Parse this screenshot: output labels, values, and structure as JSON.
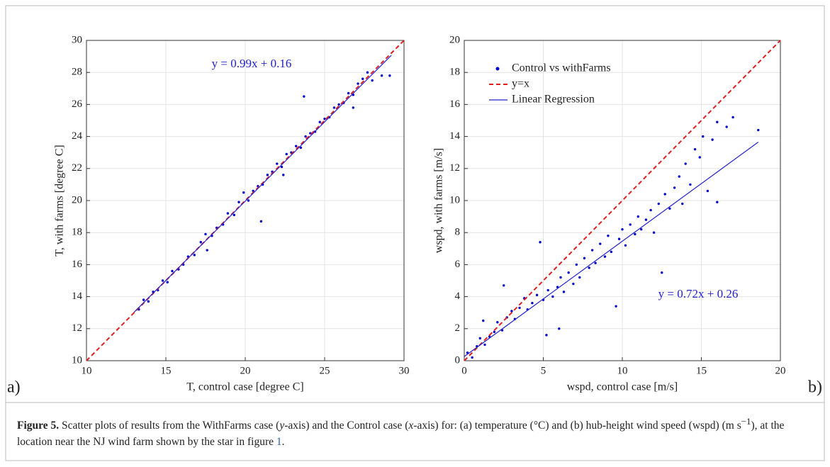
{
  "chart_data": [
    {
      "type": "scatter",
      "panel_label": "a)",
      "x_label": "T, control case [degree C]",
      "y_label": "T, with farms [degree C]",
      "annotation": "y = 0.99x + 0.16",
      "annotation_color": "#2222cc",
      "xlim": [
        10,
        30
      ],
      "ylim": [
        10,
        30
      ],
      "xticks": [
        10,
        15,
        20,
        25,
        30
      ],
      "yticks": [
        10,
        12,
        14,
        16,
        18,
        20,
        22,
        24,
        26,
        28,
        30
      ],
      "grid": true,
      "series": [
        {
          "color": "#0000cc",
          "x": [
            13.3,
            13.6,
            13.9,
            14.2,
            14.5,
            14.8,
            15.1,
            15.4,
            15.8,
            16.1,
            16.4,
            16.8,
            17.2,
            17.5,
            17.9,
            18.2,
            18.6,
            18.9,
            19.3,
            19.6,
            19.9,
            20.2,
            20.5,
            20.8,
            21.1,
            21.4,
            21.7,
            22.0,
            22.3,
            22.6,
            22.9,
            23.2,
            23.5,
            23.7,
            23.8,
            24.1,
            24.4,
            24.7,
            25.0,
            25.3,
            25.6,
            25.9,
            26.2,
            26.5,
            26.8,
            27.1,
            27.4,
            27.7,
            28.0,
            28.6,
            29.1,
            21.0,
            17.6,
            26.8,
            22.4
          ],
          "y": [
            13.2,
            13.8,
            13.7,
            14.3,
            14.4,
            15.0,
            14.9,
            15.6,
            15.7,
            16.0,
            16.5,
            16.6,
            17.4,
            17.9,
            17.8,
            18.3,
            18.5,
            19.2,
            19.1,
            19.9,
            20.5,
            20.0,
            20.6,
            20.9,
            21.0,
            21.6,
            21.8,
            22.3,
            22.1,
            22.9,
            23.0,
            23.4,
            23.3,
            26.5,
            24.0,
            24.2,
            24.3,
            24.9,
            25.1,
            25.2,
            25.8,
            26.0,
            26.1,
            26.7,
            26.6,
            27.3,
            27.6,
            28.0,
            27.5,
            27.8,
            27.8,
            18.7,
            16.9,
            25.8,
            21.6
          ]
        }
      ],
      "lines": [
        {
          "color": "#e02020",
          "dash": true,
          "x": [
            10,
            30
          ],
          "y": [
            10,
            30
          ]
        },
        {
          "color": "#2222cc",
          "dash": false,
          "x": [
            13,
            29.2
          ],
          "y": [
            13.03,
            29.07
          ]
        }
      ]
    },
    {
      "type": "scatter",
      "panel_label": "b)",
      "x_label": "wspd, control case [m/s]",
      "y_label": "wspd, with farms [m/s]",
      "annotation": "y = 0.72x + 0.26",
      "annotation_color": "#2222cc",
      "xlim": [
        0,
        20
      ],
      "ylim": [
        0,
        20
      ],
      "xticks": [
        0,
        5,
        10,
        15,
        20
      ],
      "yticks": [
        0,
        2,
        4,
        6,
        8,
        10,
        12,
        14,
        16,
        18,
        20
      ],
      "grid": true,
      "series": [
        {
          "name": "Control vs withFarms",
          "color": "#0000cc",
          "x": [
            0.2,
            0.5,
            0.8,
            1.0,
            1.3,
            1.6,
            1.9,
            2.1,
            2.4,
            2.7,
            3.0,
            3.2,
            3.5,
            3.8,
            4.0,
            4.3,
            4.6,
            4.8,
            5.0,
            5.2,
            5.3,
            5.6,
            5.9,
            6.1,
            6.3,
            6.6,
            6.9,
            7.1,
            7.3,
            7.6,
            7.9,
            8.1,
            8.3,
            8.6,
            8.9,
            9.1,
            9.3,
            9.6,
            9.8,
            10.0,
            10.2,
            10.5,
            10.8,
            11.0,
            11.2,
            11.5,
            11.8,
            12.0,
            12.3,
            12.5,
            12.7,
            13.0,
            13.3,
            13.6,
            13.8,
            14.0,
            14.3,
            14.6,
            14.9,
            15.1,
            15.4,
            15.7,
            16.0,
            16.0,
            16.6,
            17.0,
            18.6,
            2.5,
            6.0,
            1.2
          ],
          "y": [
            0.5,
            0.2,
            0.9,
            1.4,
            1.0,
            1.5,
            1.8,
            2.4,
            1.9,
            2.7,
            3.1,
            2.6,
            3.3,
            3.9,
            3.2,
            3.6,
            4.1,
            7.4,
            3.8,
            1.6,
            4.4,
            4.0,
            4.6,
            5.2,
            4.3,
            5.5,
            4.8,
            6.0,
            5.2,
            6.4,
            5.8,
            6.9,
            6.1,
            7.3,
            6.5,
            7.8,
            6.8,
            3.4,
            7.6,
            8.2,
            7.2,
            8.5,
            7.9,
            9.0,
            8.2,
            8.8,
            9.4,
            8.0,
            9.8,
            5.5,
            10.4,
            9.5,
            10.8,
            11.5,
            9.8,
            12.3,
            11.0,
            13.2,
            12.7,
            14.0,
            10.6,
            13.8,
            14.9,
            9.9,
            14.6,
            15.2,
            14.4,
            4.7,
            2.0,
            2.5
          ]
        }
      ],
      "lines": [
        {
          "name": "y=x",
          "color": "#e02020",
          "dash": true,
          "x": [
            0,
            20
          ],
          "y": [
            0,
            20
          ]
        },
        {
          "name": "Linear Regression",
          "color": "#2222cc",
          "dash": false,
          "x": [
            0,
            18.6
          ],
          "y": [
            0.26,
            13.65
          ]
        }
      ]
    }
  ],
  "caption": {
    "label": "Figure 5.",
    "segments": [
      " Scatter plots of results from the WithFarms case (",
      "y",
      "-axis) and the Control case (",
      "x",
      "-axis) for: (a) temperature (°C) and (b) hub-height wind speed (wspd) (m s",
      "−1",
      "), at the location near the NJ wind farm shown by the star in figure ",
      "1",
      "."
    ]
  }
}
